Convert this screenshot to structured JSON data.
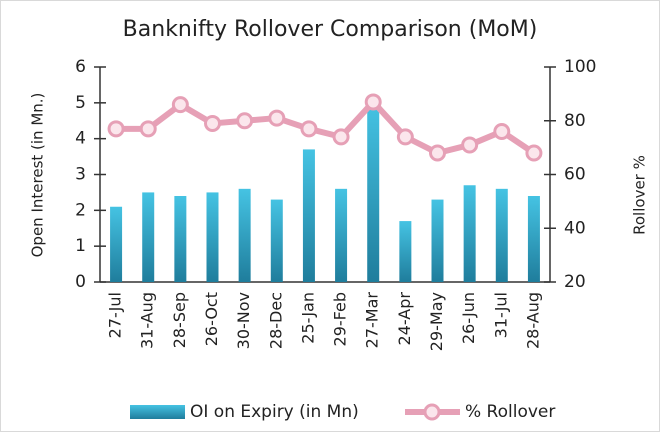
{
  "chart_data": {
    "type": "bar-line",
    "title": "Banknifty Rollover Comparison (MoM)",
    "y_label": "Open Interest (in Mn.)",
    "y2_label": "Rollover %",
    "categories": [
      "27-Jul",
      "31-Aug",
      "28-Sep",
      "26-Oct",
      "30-Nov",
      "28-Dec",
      "25-Jan",
      "29-Feb",
      "27-Mar",
      "24-Apr",
      "29-May",
      "26-Jun",
      "31-Jul",
      "28-Aug"
    ],
    "series": [
      {
        "name": "OI on Expiry (in Mn)",
        "type": "bar",
        "color": "#2a9cc0",
        "values": [
          2.1,
          2.5,
          2.4,
          2.5,
          2.6,
          2.3,
          3.7,
          2.6,
          5.0,
          1.7,
          2.3,
          2.7,
          2.6,
          2.4
        ]
      },
      {
        "name": "% Rollover",
        "type": "line",
        "axis": "y2",
        "color": "#e6a0b6",
        "values": [
          77,
          77,
          86,
          79,
          80,
          81,
          77,
          74,
          87,
          74,
          68,
          71,
          76,
          68
        ]
      }
    ],
    "ylim": [
      0,
      6
    ],
    "yticks": [
      0,
      1,
      2,
      3,
      4,
      5,
      6
    ],
    "y2lim": [
      20,
      100
    ],
    "y2ticks": [
      20,
      40,
      60,
      80,
      100
    ],
    "legend": "bottom"
  }
}
